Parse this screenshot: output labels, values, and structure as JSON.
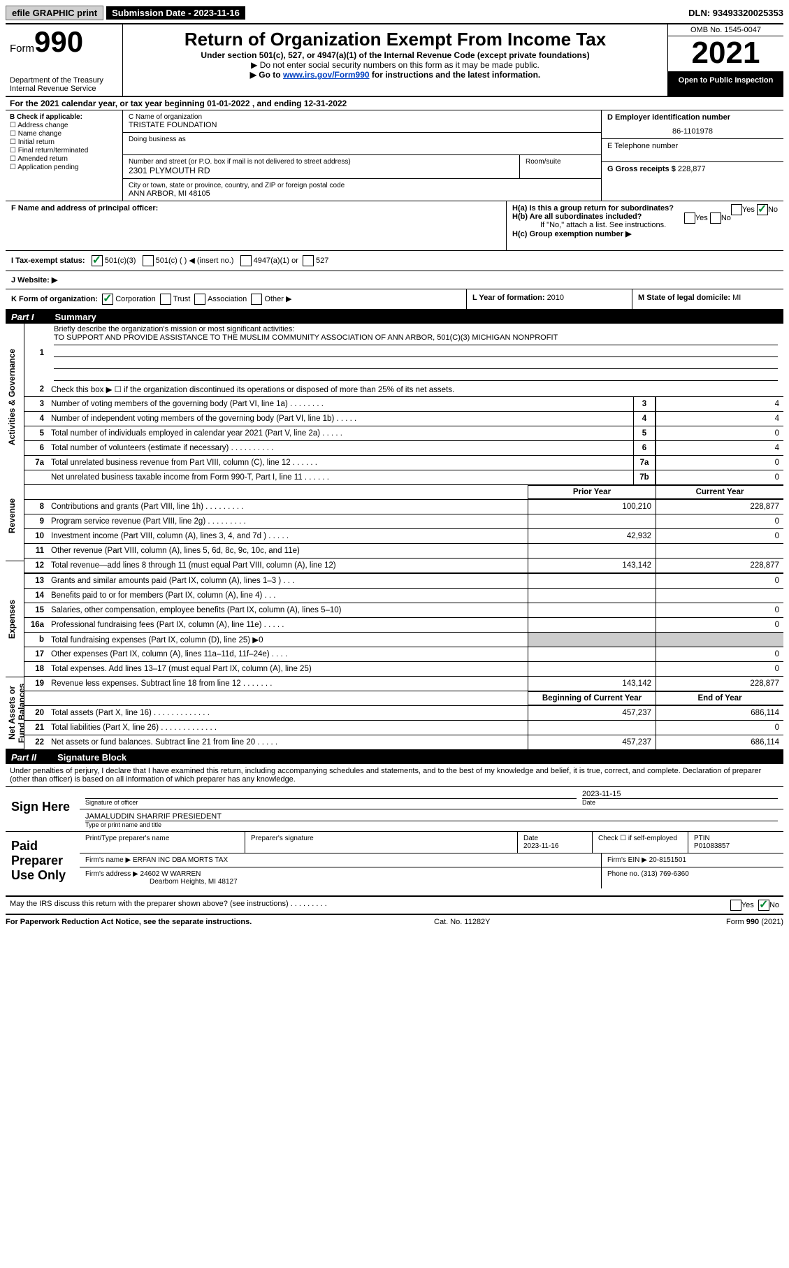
{
  "top": {
    "efile": "efile GRAPHIC print",
    "sub_label": "Submission Date - 2023-11-16",
    "dln": "DLN: 93493320025353"
  },
  "header": {
    "form_word": "Form",
    "form_num": "990",
    "dept": "Department of the Treasury Internal Revenue Service",
    "title": "Return of Organization Exempt From Income Tax",
    "sub1": "Under section 501(c), 527, or 4947(a)(1) of the Internal Revenue Code (except private foundations)",
    "sub2": "▶ Do not enter social security numbers on this form as it may be made public.",
    "sub3_pre": "▶ Go to ",
    "sub3_link": "www.irs.gov/Form990",
    "sub3_post": " for instructions and the latest information.",
    "omb": "OMB No. 1545-0047",
    "year": "2021",
    "open": "Open to Public Inspection"
  },
  "line_a": "For the 2021 calendar year, or tax year beginning 01-01-2022  , and ending 12-31-2022",
  "b": {
    "label": "B Check if applicable:",
    "opts": [
      "Address change",
      "Name change",
      "Initial return",
      "Final return/terminated",
      "Amended return",
      "Application pending"
    ]
  },
  "c": {
    "name_label": "C Name of organization",
    "name": "TRISTATE FOUNDATION",
    "dba_label": "Doing business as",
    "addr_label": "Number and street (or P.O. box if mail is not delivered to street address)",
    "room_label": "Room/suite",
    "addr": "2301 PLYMOUTH RD",
    "city_label": "City or town, state or province, country, and ZIP or foreign postal code",
    "city": "ANN ARBOR, MI  48105"
  },
  "d": {
    "ein_label": "D Employer identification number",
    "ein": "86-1101978",
    "tel_label": "E Telephone number",
    "tel": "",
    "gross_label": "G Gross receipts $",
    "gross": "228,877"
  },
  "f_label": "F  Name and address of principal officer:",
  "h": {
    "a_label": "H(a)  Is this a group return for subordinates?",
    "b_label": "H(b)  Are all subordinates included?",
    "b_note": "If \"No,\" attach a list. See instructions.",
    "c_label": "H(c)  Group exemption number ▶",
    "yes": "Yes",
    "no": "No"
  },
  "i": {
    "label": "I   Tax-exempt status:",
    "o1": "501(c)(3)",
    "o2": "501(c) (    ) ◀ (insert no.)",
    "o3": "4947(a)(1) or",
    "o4": "527"
  },
  "j_label": "J   Website: ▶",
  "k": {
    "label": "K Form of organization:",
    "o1": "Corporation",
    "o2": "Trust",
    "o3": "Association",
    "o4": "Other ▶"
  },
  "l": {
    "label": "L Year of formation: ",
    "val": "2010"
  },
  "m": {
    "label": "M State of legal domicile: ",
    "val": "MI"
  },
  "part1": {
    "num": "Part I",
    "title": "Summary"
  },
  "vtabs": [
    "Activities & Governance",
    "Revenue",
    "Expenses",
    "Net Assets or Fund Balances"
  ],
  "s1_label": "Briefly describe the organization's mission or most significant activities:",
  "s1_text": "TO SUPPORT AND PROVIDE ASSISTANCE TO THE MUSLIM COMMUNITY ASSOCIATION OF ANN ARBOR, 501(C)(3) MICHIGAN NONPROFIT",
  "s2": "Check this box ▶ ☐  if the organization discontinued its operations or disposed of more than 25% of its net assets.",
  "lines_single": [
    {
      "n": "3",
      "d": "Number of voting members of the governing body (Part VI, line 1a)   .   .   .   .   .   .   .   .",
      "b": "3",
      "v": "4"
    },
    {
      "n": "4",
      "d": "Number of independent voting members of the governing body (Part VI, line 1b)  .   .   .   .   .",
      "b": "4",
      "v": "4"
    },
    {
      "n": "5",
      "d": "Total number of individuals employed in calendar year 2021 (Part V, line 2a)  .   .   .   .   .",
      "b": "5",
      "v": "0"
    },
    {
      "n": "6",
      "d": "Total number of volunteers (estimate if necessary)   .   .   .   .   .   .   .   .   .   .",
      "b": "6",
      "v": "4"
    },
    {
      "n": "7a",
      "d": "Total unrelated business revenue from Part VIII, column (C), line 12   .   .   .   .   .   .",
      "b": "7a",
      "v": "0"
    },
    {
      "n": "",
      "d": "Net unrelated business taxable income from Form 990-T, Part I, line 11   .   .   .   .   .   .",
      "b": "7b",
      "v": "0"
    }
  ],
  "hdr_py": "Prior Year",
  "hdr_cy": "Current Year",
  "rev_lines": [
    {
      "n": "8",
      "d": "Contributions and grants (Part VIII, line 1h)  .   .   .   .   .   .   .   .   .",
      "py": "100,210",
      "cy": "228,877"
    },
    {
      "n": "9",
      "d": "Program service revenue (Part VIII, line 2g)   .   .   .   .   .   .   .   .   .",
      "py": "",
      "cy": "0"
    },
    {
      "n": "10",
      "d": "Investment income (Part VIII, column (A), lines 3, 4, and 7d )   .   .   .   .   .",
      "py": "42,932",
      "cy": "0"
    },
    {
      "n": "11",
      "d": "Other revenue (Part VIII, column (A), lines 5, 6d, 8c, 9c, 10c, and 11e)",
      "py": "",
      "cy": ""
    },
    {
      "n": "12",
      "d": "Total revenue—add lines 8 through 11 (must equal Part VIII, column (A), line 12)",
      "py": "143,142",
      "cy": "228,877"
    }
  ],
  "exp_lines": [
    {
      "n": "13",
      "d": "Grants and similar amounts paid (Part IX, column (A), lines 1–3 )   .   .   .",
      "py": "",
      "cy": "0"
    },
    {
      "n": "14",
      "d": "Benefits paid to or for members (Part IX, column (A), line 4)   .   .   .",
      "py": "",
      "cy": ""
    },
    {
      "n": "15",
      "d": "Salaries, other compensation, employee benefits (Part IX, column (A), lines 5–10)",
      "py": "",
      "cy": "0"
    },
    {
      "n": "16a",
      "d": "Professional fundraising fees (Part IX, column (A), line 11e)   .   .   .   .   .",
      "py": "",
      "cy": "0"
    },
    {
      "n": "b",
      "d": "Total fundraising expenses (Part IX, column (D), line 25) ▶0",
      "py": "SHADE",
      "cy": "SHADE"
    },
    {
      "n": "17",
      "d": "Other expenses (Part IX, column (A), lines 11a–11d, 11f–24e)  .   .   .   .",
      "py": "",
      "cy": "0"
    },
    {
      "n": "18",
      "d": "Total expenses. Add lines 13–17 (must equal Part IX, column (A), line 25)",
      "py": "",
      "cy": "0"
    },
    {
      "n": "19",
      "d": "Revenue less expenses. Subtract line 18 from line 12  .   .   .   .   .   .   .",
      "py": "143,142",
      "cy": "228,877"
    }
  ],
  "hdr_bcy": "Beginning of Current Year",
  "hdr_eoy": "End of Year",
  "net_lines": [
    {
      "n": "20",
      "d": "Total assets (Part X, line 16)  .   .   .   .   .   .   .   .   .   .   .   .   .",
      "py": "457,237",
      "cy": "686,114"
    },
    {
      "n": "21",
      "d": "Total liabilities (Part X, line 26) .   .   .   .   .   .   .   .   .   .   .   .   .",
      "py": "",
      "cy": "0"
    },
    {
      "n": "22",
      "d": "Net assets or fund balances. Subtract line 21 from line 20   .   .   .   .   .",
      "py": "457,237",
      "cy": "686,114"
    }
  ],
  "part2": {
    "num": "Part II",
    "title": "Signature Block"
  },
  "sig_intro": "Under penalties of perjury, I declare that I have examined this return, including accompanying schedules and statements, and to the best of my knowledge and belief, it is true, correct, and complete. Declaration of preparer (other than officer) is based on all information of which preparer has any knowledge.",
  "sign_here": "Sign Here",
  "sig_date": "2023-11-15",
  "sig_off_label": "Signature of officer",
  "sig_date_label": "Date",
  "sig_name": "JAMALUDDIN SHARRIF PRESIEDENT",
  "sig_name_label": "Type or print name and title",
  "paid_label": "Paid Preparer Use Only",
  "paid": {
    "h_name": "Print/Type preparer's name",
    "h_sig": "Preparer's signature",
    "h_date": "Date",
    "date": "2023-11-16",
    "h_check": "Check ☐ if self-employed",
    "h_ptin": "PTIN",
    "ptin": "P01083857",
    "firm_name_l": "Firm's name    ▶",
    "firm_name": "ERFAN INC DBA MORTS TAX",
    "firm_ein_l": "Firm's EIN ▶",
    "firm_ein": "20-8151501",
    "firm_addr_l": "Firm's address ▶",
    "firm_addr1": "24602 W WARREN",
    "firm_addr2": "Dearborn Heights, MI  48127",
    "phone_l": "Phone no.",
    "phone": "(313) 769-6360"
  },
  "discuss": "May the IRS discuss this return with the preparer shown above? (see instructions)   .   .   .   .   .   .   .   .   .",
  "footer": {
    "l": "For Paperwork Reduction Act Notice, see the separate instructions.",
    "m": "Cat. No. 11282Y",
    "r": "Form 990 (2021)"
  }
}
